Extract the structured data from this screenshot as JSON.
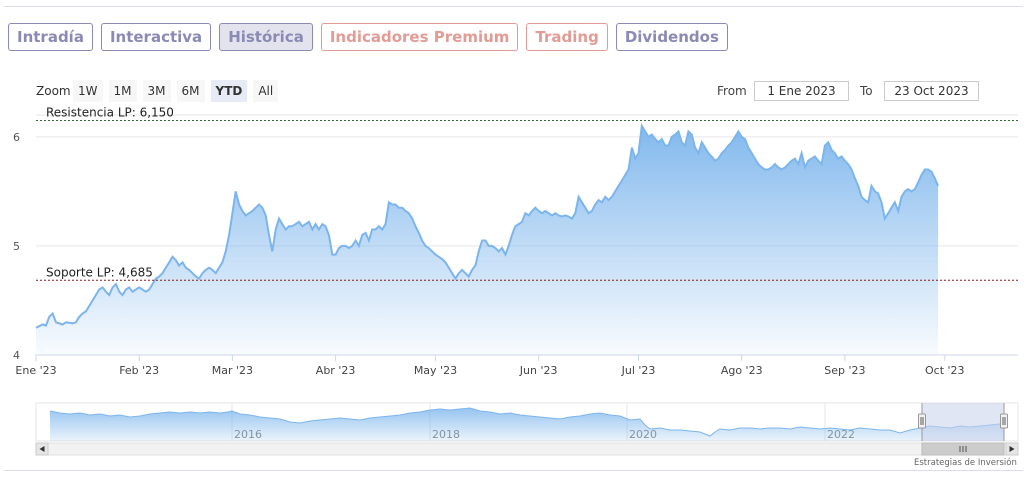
{
  "tabs": [
    {
      "label": "Intradía",
      "color": "#8a8ab5",
      "bg": "#ffffff"
    },
    {
      "label": "Interactiva",
      "color": "#8a8ab5",
      "bg": "#ffffff"
    },
    {
      "label": "Histórica",
      "color": "#8a8ab5",
      "bg": "#e3e3ee"
    },
    {
      "label": "Indicadores Premium",
      "color": "#e39b95",
      "bg": "#ffffff"
    },
    {
      "label": "Trading",
      "color": "#e39b95",
      "bg": "#ffffff"
    },
    {
      "label": "Dividendos",
      "color": "#8a8ab5",
      "bg": "#ffffff"
    }
  ],
  "zoom": {
    "label": "Zoom",
    "buttons": [
      "1W",
      "1M",
      "3M",
      "6M",
      "YTD",
      "All"
    ],
    "active": "YTD"
  },
  "range": {
    "from_label": "From",
    "from_value": "1 Ene 2023",
    "to_label": "To",
    "to_value": "23 Oct 2023"
  },
  "credit": "Estrategias de Inversión",
  "colors": {
    "series_line": "#7cb5ec",
    "resistance": "#2e6b2e",
    "support": "#8b1a1a",
    "navigator_mask": "#c8d2eb"
  },
  "chart_data": {
    "type": "area",
    "title": "",
    "xlabel": "",
    "ylabel": "",
    "ylim": [
      4,
      6.2
    ],
    "yticks": [
      4,
      5,
      6
    ],
    "xticks": [
      {
        "label": "Ene '23",
        "day": 0
      },
      {
        "label": "Feb '23",
        "day": 31
      },
      {
        "label": "Mar '23",
        "day": 59
      },
      {
        "label": "Abr '23",
        "day": 90
      },
      {
        "label": "May '23",
        "day": 120
      },
      {
        "label": "Jun '23",
        "day": 151
      },
      {
        "label": "Jul '23",
        "day": 181
      },
      {
        "label": "Ago '23",
        "day": 212
      },
      {
        "label": "Sep '23",
        "day": 243
      },
      {
        "label": "Oct '23",
        "day": 273
      }
    ],
    "x_end_day": 295,
    "plot_lines": [
      {
        "label": "Resistencia LP: 6,150",
        "value": 6.15,
        "color": "#2e6b2e"
      },
      {
        "label": "Soporte LP: 4,685",
        "value": 4.685,
        "color": "#8b1a1a"
      }
    ],
    "series": [
      {
        "points": [
          [
            0,
            4.25
          ],
          [
            2,
            4.28
          ],
          [
            3,
            4.27
          ],
          [
            4,
            4.35
          ],
          [
            5,
            4.38
          ],
          [
            6,
            4.3
          ],
          [
            8,
            4.28
          ],
          [
            9,
            4.3
          ],
          [
            11,
            4.29
          ],
          [
            12,
            4.3
          ],
          [
            13,
            4.35
          ],
          [
            14,
            4.38
          ],
          [
            15,
            4.4
          ],
          [
            16,
            4.45
          ],
          [
            17,
            4.5
          ],
          [
            18,
            4.55
          ],
          [
            19,
            4.6
          ],
          [
            20,
            4.62
          ],
          [
            21,
            4.58
          ],
          [
            22,
            4.55
          ],
          [
            23,
            4.62
          ],
          [
            24,
            4.65
          ],
          [
            25,
            4.58
          ],
          [
            26,
            4.55
          ],
          [
            27,
            4.6
          ],
          [
            28,
            4.62
          ],
          [
            29,
            4.58
          ],
          [
            30,
            4.6
          ],
          [
            31,
            4.62
          ],
          [
            32,
            4.6
          ],
          [
            33,
            4.58
          ],
          [
            34,
            4.6
          ],
          [
            35,
            4.65
          ],
          [
            36,
            4.7
          ],
          [
            37,
            4.72
          ],
          [
            38,
            4.75
          ],
          [
            39,
            4.8
          ],
          [
            40,
            4.85
          ],
          [
            41,
            4.9
          ],
          [
            42,
            4.87
          ],
          [
            43,
            4.82
          ],
          [
            44,
            4.85
          ],
          [
            45,
            4.8
          ],
          [
            46,
            4.78
          ],
          [
            47,
            4.75
          ],
          [
            48,
            4.72
          ],
          [
            49,
            4.7
          ],
          [
            50,
            4.75
          ],
          [
            51,
            4.78
          ],
          [
            52,
            4.8
          ],
          [
            53,
            4.78
          ],
          [
            54,
            4.75
          ],
          [
            55,
            4.8
          ],
          [
            56,
            4.85
          ],
          [
            57,
            4.95
          ],
          [
            58,
            5.1
          ],
          [
            59,
            5.3
          ],
          [
            60,
            5.5
          ],
          [
            61,
            5.38
          ],
          [
            62,
            5.32
          ],
          [
            63,
            5.28
          ],
          [
            64,
            5.3
          ],
          [
            65,
            5.32
          ],
          [
            66,
            5.35
          ],
          [
            67,
            5.38
          ],
          [
            68,
            5.35
          ],
          [
            69,
            5.28
          ],
          [
            70,
            5.1
          ],
          [
            71,
            4.95
          ],
          [
            72,
            5.15
          ],
          [
            73,
            5.25
          ],
          [
            74,
            5.2
          ],
          [
            75,
            5.15
          ],
          [
            76,
            5.18
          ],
          [
            77,
            5.18
          ],
          [
            78,
            5.2
          ],
          [
            79,
            5.22
          ],
          [
            80,
            5.18
          ],
          [
            81,
            5.2
          ],
          [
            82,
            5.22
          ],
          [
            83,
            5.15
          ],
          [
            84,
            5.2
          ],
          [
            85,
            5.15
          ],
          [
            86,
            5.2
          ],
          [
            87,
            5.18
          ],
          [
            88,
            5.1
          ],
          [
            89,
            4.92
          ],
          [
            90,
            4.92
          ],
          [
            91,
            4.98
          ],
          [
            92,
            5.0
          ],
          [
            93,
            5.0
          ],
          [
            94,
            4.98
          ],
          [
            95,
            5.0
          ],
          [
            96,
            5.05
          ],
          [
            97,
            5.0
          ],
          [
            98,
            5.1
          ],
          [
            99,
            5.12
          ],
          [
            100,
            5.05
          ],
          [
            101,
            5.15
          ],
          [
            102,
            5.15
          ],
          [
            103,
            5.18
          ],
          [
            104,
            5.15
          ],
          [
            105,
            5.2
          ],
          [
            106,
            5.4
          ],
          [
            107,
            5.38
          ],
          [
            108,
            5.38
          ],
          [
            109,
            5.35
          ],
          [
            110,
            5.35
          ],
          [
            111,
            5.32
          ],
          [
            112,
            5.3
          ],
          [
            113,
            5.25
          ],
          [
            114,
            5.18
          ],
          [
            115,
            5.12
          ],
          [
            116,
            5.05
          ],
          [
            117,
            5.0
          ],
          [
            118,
            4.98
          ],
          [
            119,
            4.95
          ],
          [
            120,
            4.92
          ],
          [
            121,
            4.9
          ],
          [
            122,
            4.88
          ],
          [
            123,
            4.85
          ],
          [
            124,
            4.8
          ],
          [
            125,
            4.75
          ],
          [
            126,
            4.7
          ],
          [
            127,
            4.75
          ],
          [
            128,
            4.78
          ],
          [
            129,
            4.75
          ],
          [
            130,
            4.72
          ],
          [
            131,
            4.78
          ],
          [
            132,
            4.82
          ],
          [
            133,
            4.95
          ],
          [
            134,
            5.05
          ],
          [
            135,
            5.05
          ],
          [
            136,
            5.0
          ],
          [
            137,
            5.0
          ],
          [
            138,
            4.98
          ],
          [
            139,
            4.95
          ],
          [
            140,
            4.98
          ],
          [
            141,
            4.92
          ],
          [
            142,
            5.0
          ],
          [
            143,
            5.1
          ],
          [
            144,
            5.18
          ],
          [
            145,
            5.2
          ],
          [
            146,
            5.22
          ],
          [
            147,
            5.3
          ],
          [
            148,
            5.28
          ],
          [
            149,
            5.32
          ],
          [
            150,
            5.35
          ],
          [
            151,
            5.32
          ],
          [
            152,
            5.3
          ],
          [
            153,
            5.32
          ],
          [
            154,
            5.3
          ],
          [
            155,
            5.28
          ],
          [
            156,
            5.3
          ],
          [
            157,
            5.28
          ],
          [
            158,
            5.27
          ],
          [
            159,
            5.28
          ],
          [
            160,
            5.27
          ],
          [
            161,
            5.25
          ],
          [
            162,
            5.3
          ],
          [
            163,
            5.45
          ],
          [
            164,
            5.4
          ],
          [
            165,
            5.35
          ],
          [
            166,
            5.3
          ],
          [
            167,
            5.32
          ],
          [
            168,
            5.38
          ],
          [
            169,
            5.42
          ],
          [
            170,
            5.4
          ],
          [
            171,
            5.45
          ],
          [
            172,
            5.42
          ],
          [
            173,
            5.45
          ],
          [
            174,
            5.5
          ],
          [
            175,
            5.55
          ],
          [
            176,
            5.6
          ],
          [
            177,
            5.65
          ],
          [
            178,
            5.7
          ],
          [
            179,
            5.9
          ],
          [
            180,
            5.8
          ],
          [
            181,
            5.85
          ],
          [
            182,
            6.1
          ],
          [
            183,
            6.05
          ],
          [
            184,
            6.0
          ],
          [
            185,
            6.02
          ],
          [
            186,
            5.98
          ],
          [
            187,
            5.95
          ],
          [
            188,
            5.98
          ],
          [
            189,
            5.92
          ],
          [
            190,
            5.92
          ],
          [
            191,
            6.0
          ],
          [
            192,
            6.02
          ],
          [
            193,
            6.05
          ],
          [
            194,
            5.95
          ],
          [
            195,
            5.92
          ],
          [
            196,
            6.05
          ],
          [
            197,
            6.02
          ],
          [
            198,
            5.9
          ],
          [
            199,
            5.85
          ],
          [
            200,
            5.95
          ],
          [
            201,
            5.9
          ],
          [
            202,
            5.85
          ],
          [
            203,
            5.82
          ],
          [
            204,
            5.78
          ],
          [
            205,
            5.8
          ],
          [
            206,
            5.85
          ],
          [
            207,
            5.88
          ],
          [
            208,
            5.92
          ],
          [
            209,
            5.95
          ],
          [
            210,
            6.0
          ],
          [
            211,
            6.05
          ],
          [
            212,
            6.0
          ],
          [
            213,
            5.98
          ],
          [
            214,
            5.9
          ],
          [
            215,
            5.85
          ],
          [
            216,
            5.8
          ],
          [
            217,
            5.75
          ],
          [
            218,
            5.72
          ],
          [
            219,
            5.7
          ],
          [
            220,
            5.7
          ],
          [
            221,
            5.72
          ],
          [
            222,
            5.75
          ],
          [
            223,
            5.72
          ],
          [
            224,
            5.7
          ],
          [
            225,
            5.72
          ],
          [
            226,
            5.75
          ],
          [
            227,
            5.78
          ],
          [
            228,
            5.8
          ],
          [
            229,
            5.75
          ],
          [
            230,
            5.85
          ],
          [
            231,
            5.72
          ],
          [
            232,
            5.78
          ],
          [
            233,
            5.8
          ],
          [
            234,
            5.82
          ],
          [
            235,
            5.78
          ],
          [
            236,
            5.75
          ],
          [
            237,
            5.92
          ],
          [
            238,
            5.95
          ],
          [
            239,
            5.88
          ],
          [
            240,
            5.85
          ],
          [
            241,
            5.8
          ],
          [
            242,
            5.82
          ],
          [
            243,
            5.78
          ],
          [
            244,
            5.75
          ],
          [
            245,
            5.7
          ],
          [
            246,
            5.62
          ],
          [
            247,
            5.55
          ],
          [
            248,
            5.45
          ],
          [
            249,
            5.42
          ],
          [
            250,
            5.4
          ],
          [
            251,
            5.55
          ],
          [
            252,
            5.5
          ],
          [
            253,
            5.48
          ],
          [
            254,
            5.4
          ],
          [
            255,
            5.25
          ],
          [
            256,
            5.3
          ],
          [
            257,
            5.35
          ],
          [
            258,
            5.4
          ],
          [
            259,
            5.32
          ],
          [
            260,
            5.45
          ],
          [
            261,
            5.5
          ],
          [
            262,
            5.52
          ],
          [
            263,
            5.5
          ],
          [
            264,
            5.52
          ],
          [
            265,
            5.58
          ],
          [
            266,
            5.65
          ],
          [
            267,
            5.7
          ],
          [
            268,
            5.7
          ],
          [
            269,
            5.68
          ],
          [
            270,
            5.62
          ],
          [
            271,
            5.55
          ]
        ]
      }
    ],
    "navigator": {
      "xticks": [
        "2016",
        "2018",
        "2020",
        "2022"
      ]
    }
  }
}
